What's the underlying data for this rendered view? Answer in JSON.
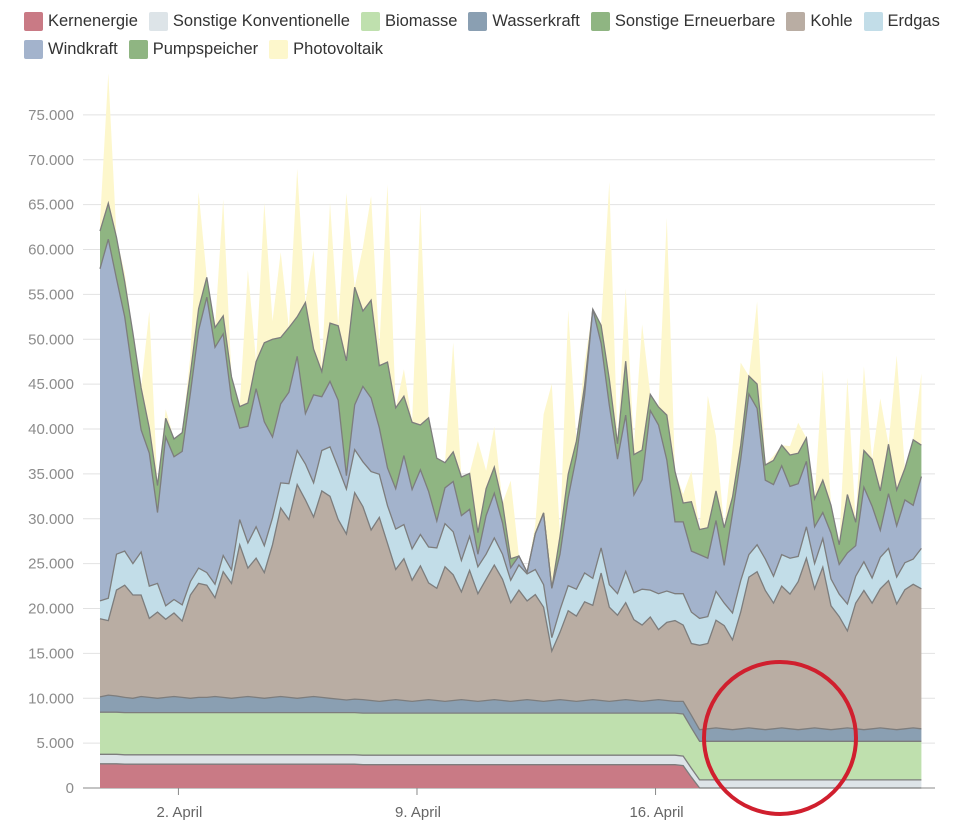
{
  "chart_data": {
    "type": "area",
    "stacked": true,
    "title": "",
    "xlabel": "",
    "ylabel": "",
    "ylim": [
      0,
      80000
    ],
    "y_ticks": [
      "0",
      "5.000",
      "10.000",
      "15.000",
      "20.000",
      "25.000",
      "30.000",
      "35.000",
      "40.000",
      "45.000",
      "50.000",
      "55.000",
      "60.000",
      "65.000",
      "70.000",
      "75.000"
    ],
    "x_range_days": [
      -0.8,
      24.2
    ],
    "x_ticks": [
      {
        "day": 2,
        "label": "2. April"
      },
      {
        "day": 9,
        "label": "9. April"
      },
      {
        "day": 16,
        "label": "16. April"
      }
    ],
    "grid": true,
    "legend_position": "top",
    "series": [
      {
        "name": "Kernenergie",
        "color": "#c97a85",
        "values": [
          2700,
          2700,
          2700,
          2650,
          2650,
          2650,
          2650,
          2650,
          2650,
          2650,
          2650,
          2650,
          2650,
          2650,
          2650,
          2650,
          2650,
          2650,
          2650,
          2650,
          2650,
          2650,
          2650,
          2650,
          2650,
          2650,
          2650,
          2650,
          2650,
          2650,
          2650,
          2650,
          2600,
          2600,
          2600,
          2600,
          2600,
          2600,
          2600,
          2600,
          2600,
          2600,
          2600,
          2600,
          2600,
          2600,
          2600,
          2600,
          2600,
          2600,
          2600,
          2600,
          2600,
          2600,
          2600,
          2600,
          2600,
          2600,
          2600,
          2600,
          2600,
          2600,
          2600,
          2600,
          2600,
          2600,
          2600,
          2600,
          2600,
          2600,
          2600,
          2500,
          1200,
          0,
          0,
          0,
          0,
          0,
          0,
          0,
          0,
          0,
          0,
          0,
          0,
          0,
          0,
          0,
          0,
          0,
          0,
          0,
          0,
          0,
          0,
          0,
          0,
          0,
          0,
          0,
          0
        ]
      },
      {
        "name": "Sonstige Konventionelle",
        "color": "#dde4e8",
        "values": [
          1050,
          1050,
          1050,
          1050,
          1050,
          1050,
          1050,
          1050,
          1050,
          1050,
          1050,
          1050,
          1050,
          1050,
          1050,
          1050,
          1050,
          1050,
          1050,
          1050,
          1050,
          1050,
          1050,
          1050,
          1050,
          1050,
          1050,
          1050,
          1050,
          1050,
          1050,
          1050,
          1050,
          1050,
          1050,
          1050,
          1050,
          1050,
          1050,
          1050,
          1050,
          1050,
          1050,
          1050,
          1050,
          1050,
          1050,
          1050,
          1050,
          1050,
          1050,
          1050,
          1050,
          1050,
          1050,
          1050,
          1050,
          1050,
          1050,
          1050,
          1050,
          1050,
          1050,
          1050,
          1050,
          1050,
          1050,
          1050,
          1050,
          1050,
          1050,
          1050,
          1000,
          900,
          900,
          900,
          900,
          900,
          900,
          900,
          900,
          900,
          900,
          900,
          900,
          900,
          900,
          900,
          900,
          900,
          900,
          900,
          900,
          900,
          900,
          900,
          900,
          900,
          900,
          900,
          900
        ]
      },
      {
        "name": "Biomasse",
        "color": "#bfe0ae",
        "values": [
          4700,
          4700,
          4700,
          4700,
          4700,
          4700,
          4700,
          4700,
          4700,
          4700,
          4700,
          4700,
          4700,
          4700,
          4700,
          4700,
          4700,
          4700,
          4700,
          4700,
          4700,
          4700,
          4700,
          4700,
          4700,
          4700,
          4700,
          4700,
          4700,
          4700,
          4700,
          4700,
          4700,
          4700,
          4700,
          4700,
          4700,
          4700,
          4700,
          4700,
          4700,
          4700,
          4700,
          4700,
          4700,
          4700,
          4700,
          4700,
          4700,
          4700,
          4700,
          4700,
          4700,
          4700,
          4700,
          4700,
          4700,
          4700,
          4700,
          4700,
          4700,
          4700,
          4700,
          4700,
          4700,
          4700,
          4700,
          4700,
          4700,
          4700,
          4700,
          4700,
          4500,
          4300,
          4300,
          4300,
          4300,
          4300,
          4300,
          4300,
          4300,
          4300,
          4300,
          4300,
          4300,
          4300,
          4300,
          4300,
          4300,
          4300,
          4300,
          4300,
          4300,
          4300,
          4300,
          4300,
          4300,
          4300,
          4300,
          4300,
          4300
        ]
      },
      {
        "name": "Wasserkraft",
        "color": "#8a9fb2",
        "values": [
          1700,
          1900,
          1800,
          1700,
          1600,
          1800,
          1700,
          1600,
          1700,
          1800,
          1700,
          1600,
          1700,
          1700,
          1800,
          1700,
          1600,
          1700,
          1800,
          1700,
          1600,
          1700,
          1800,
          1700,
          1600,
          1700,
          1800,
          1700,
          1600,
          1500,
          1400,
          1500,
          1500,
          1400,
          1300,
          1400,
          1500,
          1400,
          1300,
          1400,
          1500,
          1400,
          1300,
          1400,
          1500,
          1400,
          1300,
          1400,
          1500,
          1400,
          1300,
          1400,
          1500,
          1400,
          1300,
          1400,
          1500,
          1400,
          1300,
          1400,
          1500,
          1400,
          1300,
          1400,
          1500,
          1400,
          1300,
          1400,
          1500,
          1400,
          1300,
          1400,
          1400,
          1300,
          1400,
          1500,
          1400,
          1300,
          1400,
          1500,
          1400,
          1300,
          1400,
          1500,
          1400,
          1300,
          1400,
          1500,
          1400,
          1300,
          1400,
          1500,
          1400,
          1300,
          1400,
          1500,
          1400,
          1300,
          1400,
          1500,
          1400
        ]
      },
      {
        "name": "Kohle",
        "color": "#b9ada3",
        "values": [
          8700,
          8300,
          11800,
          12500,
          11500,
          11300,
          8800,
          9600,
          8700,
          9300,
          8500,
          11500,
          12700,
          12500,
          11000,
          14000,
          12800,
          17000,
          14300,
          15500,
          14000,
          17000,
          21000,
          19800,
          23800,
          22000,
          20000,
          23000,
          22500,
          20000,
          18500,
          23000,
          21500,
          19000,
          20500,
          17500,
          14500,
          15800,
          13500,
          15000,
          13000,
          12500,
          15000,
          14000,
          12000,
          14500,
          12000,
          13500,
          15000,
          13500,
          11000,
          12300,
          11000,
          11800,
          10500,
          5500,
          7500,
          10000,
          9500,
          11000,
          10500,
          14200,
          10500,
          9500,
          10800,
          9000,
          8500,
          9300,
          7800,
          8700,
          9000,
          8500,
          8000,
          9400,
          9500,
          12000,
          11500,
          10000,
          13000,
          16800,
          17500,
          15500,
          14000,
          15800,
          15000,
          16500,
          19000,
          15500,
          18000,
          13800,
          12500,
          10800,
          14000,
          15500,
          14000,
          15500,
          16500,
          14000,
          15500,
          16000,
          15600
        ]
      },
      {
        "name": "Erdgas",
        "color": "#c2dde8",
        "values": [
          2000,
          2500,
          4000,
          3800,
          3500,
          4800,
          3600,
          3200,
          1500,
          1500,
          1800,
          1500,
          1700,
          1400,
          1500,
          1800,
          1500,
          2800,
          2800,
          3500,
          3000,
          3000,
          2800,
          4000,
          3800,
          4000,
          3800,
          4500,
          5500,
          5800,
          5000,
          4800,
          5000,
          6500,
          4800,
          4200,
          4500,
          3800,
          3500,
          3500,
          4000,
          4500,
          4800,
          4800,
          3500,
          3800,
          3000,
          2800,
          3000,
          2800,
          2500,
          2800,
          3000,
          2800,
          2500,
          1500,
          2500,
          2800,
          3000,
          3200,
          3000,
          2800,
          2500,
          2400,
          3500,
          3000,
          4000,
          3000,
          4000,
          3500,
          3000,
          3500,
          3500,
          3000,
          3000,
          3200,
          2500,
          3000,
          3500,
          2500,
          3000,
          3500,
          3000,
          3500,
          4000,
          2800,
          3500,
          2800,
          3200,
          3000,
          2500,
          3000,
          3000,
          3200,
          2800,
          3500,
          3600,
          3000,
          3000,
          2800,
          4500
        ]
      },
      {
        "name": "Windkraft",
        "color": "#a3b3cc",
        "values": [
          37000,
          40000,
          30700,
          26100,
          21000,
          13600,
          14800,
          7900,
          18800,
          15900,
          17100,
          21000,
          26500,
          30700,
          26400,
          24700,
          19000,
          10200,
          13000,
          15400,
          13800,
          9000,
          8800,
          10200,
          10500,
          5600,
          9800,
          6000,
          7300,
          7500,
          1500,
          5000,
          8400,
          8200,
          5200,
          4200,
          4500,
          7700,
          6600,
          7200,
          6200,
          3000,
          4000,
          5600,
          5000,
          3000,
          1400,
          4300,
          5000,
          3500,
          1400,
          1000,
          200,
          4000,
          8000,
          5500,
          6200,
          9800,
          14800,
          19800,
          30000,
          22800,
          20000,
          15000,
          17400,
          10900,
          12200,
          20000,
          18800,
          14600,
          8000,
          8000,
          6800,
          7100,
          6500,
          7900,
          4200,
          11100,
          13500,
          17900,
          15200,
          8800,
          10200,
          9900,
          8000,
          8100,
          7300,
          4100,
          2900,
          5100,
          3300,
          5700,
          3400,
          8300,
          8000,
          3000,
          6100,
          5700,
          7000,
          6000,
          8000
        ]
      },
      {
        "name": "Pumpspeicher",
        "color": "#8fb582",
        "values": [
          4200,
          4000,
          4600,
          3900,
          4700,
          4700,
          2800,
          3000,
          2100,
          2000,
          2100,
          2200,
          2400,
          2200,
          2200,
          2000,
          2500,
          2400,
          2600,
          3000,
          8800,
          10900,
          7400,
          7200,
          4400,
          12400,
          5100,
          2800,
          6500,
          8300,
          12800,
          13100,
          8400,
          10900,
          6900,
          11800,
          9000,
          6600,
          7500,
          5000,
          8200,
          7000,
          2800,
          3300,
          4300,
          4000,
          2400,
          3000,
          2900,
          2200,
          1000,
          0,
          0,
          0,
          0,
          0,
          2000,
          2600,
          1700,
          1100,
          0,
          2000,
          2900,
          1700,
          6000,
          4500,
          3300,
          1800,
          2000,
          5000,
          5600,
          2100,
          5500,
          2800,
          3400,
          3300,
          4200,
          1800,
          1600,
          2000,
          2700,
          1700,
          2700,
          2300,
          3500,
          3400,
          2600,
          3100,
          3600,
          3100,
          2200,
          6500,
          2600,
          4100,
          5200,
          4400,
          5500,
          4000,
          3500,
          7300,
          3500
        ]
      },
      {
        "name": "Photovoltaik",
        "color": "#fdf7cc",
        "values": [
          1000,
          14500,
          0,
          1000,
          0,
          0,
          13000,
          0,
          1000,
          0,
          0,
          2000,
          13000,
          0,
          0,
          13000,
          0,
          0,
          14800,
          0,
          15600,
          2000,
          9500,
          0,
          16500,
          0,
          11000,
          500,
          13400,
          0,
          18700,
          0,
          7100,
          11600,
          2000,
          19800,
          0,
          3000,
          0,
          24600,
          0,
          0,
          0,
          12200,
          0,
          0,
          10200,
          2000,
          4500,
          0,
          8700,
          0,
          0,
          1000,
          11000,
          22800,
          0,
          18300,
          0,
          2500,
          0,
          0,
          22000,
          0,
          8100,
          1000,
          14000,
          0,
          0,
          22000,
          0,
          1000,
          3400,
          0,
          14700,
          6100,
          0,
          5500,
          9200,
          0,
          9200,
          0,
          500,
          0,
          1000,
          3400,
          0,
          0,
          12300,
          0,
          0,
          13000,
          0,
          9400,
          0,
          10300,
          0,
          15000,
          0,
          0,
          8000
        ]
      }
    ]
  },
  "legend": [
    {
      "label": "Kernenergie",
      "color": "#c97a85"
    },
    {
      "label": "Sonstige Konventionelle",
      "color": "#dde4e8"
    },
    {
      "label": "Biomasse",
      "color": "#bfe0ae"
    },
    {
      "label": "Wasserkraft",
      "color": "#8a9fb2"
    },
    {
      "label": "Sonstige Erneuerbare",
      "color": "#8fb582"
    },
    {
      "label": "Kohle",
      "color": "#b9ada3"
    },
    {
      "label": "Erdgas",
      "color": "#c2dde8"
    },
    {
      "label": "Windkraft",
      "color": "#a3b3cc"
    },
    {
      "label": "Pumpspeicher",
      "color": "#8fb582"
    },
    {
      "label": "Photovoltaik",
      "color": "#fdf7cc"
    }
  ],
  "annotation": {
    "shape": "circle",
    "color": "#d01f2e"
  }
}
